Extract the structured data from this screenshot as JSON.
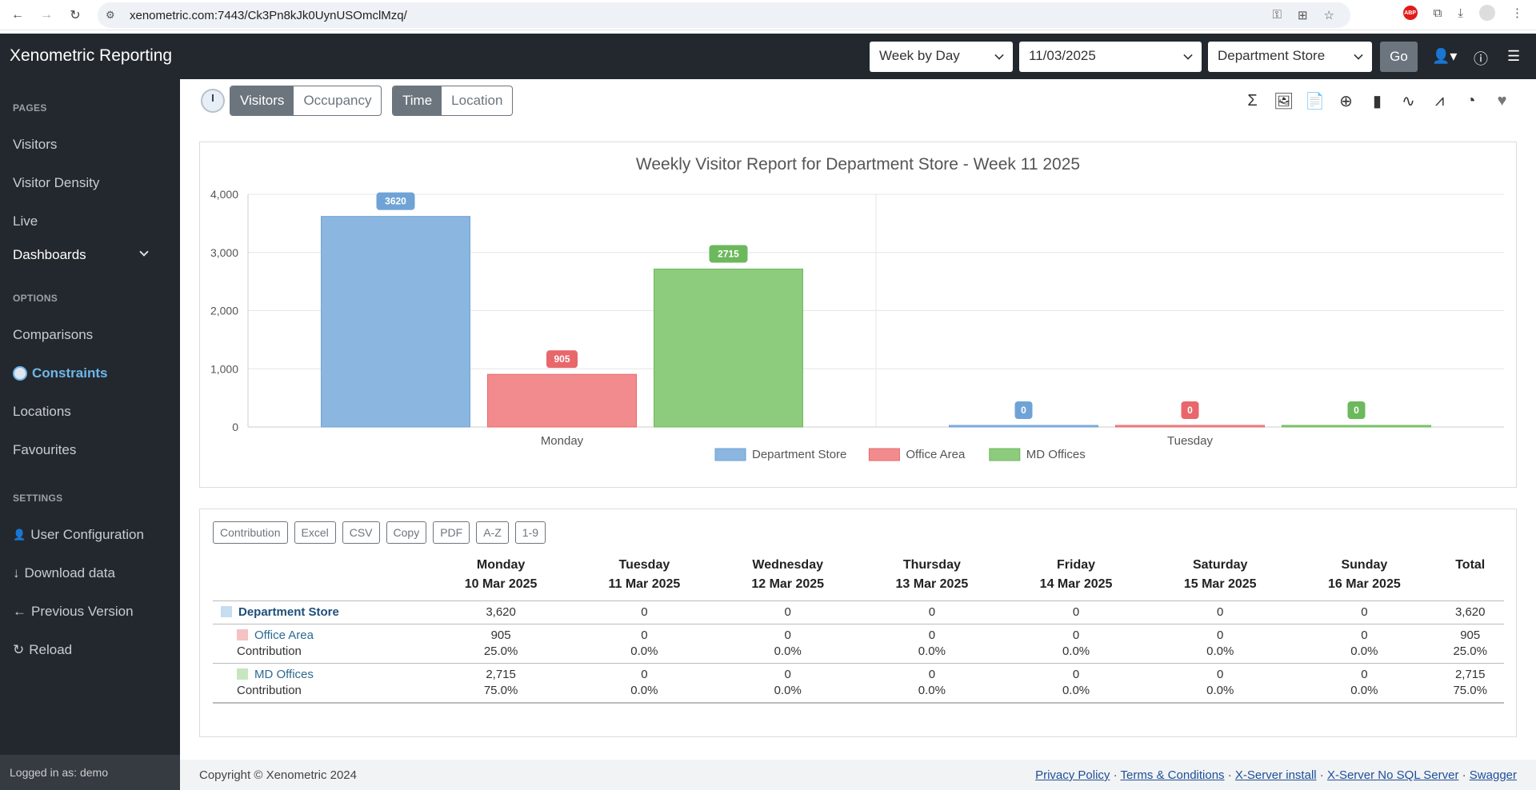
{
  "browser": {
    "url": "xenometric.com:7443/Ck3Pn8kJk0UynUSOmclMzq/"
  },
  "header": {
    "brand": "Xenometric Reporting",
    "period_select": "Week by Day",
    "date_select": "11/03/2025",
    "location_select": "Department Store",
    "go_label": "Go"
  },
  "sidebar": {
    "pages_heading": "PAGES",
    "visitors": "Visitors",
    "visitor_density": "Visitor Density",
    "live": "Live",
    "dashboards": "Dashboards",
    "options_heading": "OPTIONS",
    "comparisons": "Comparisons",
    "constraints": "Constraints",
    "locations": "Locations",
    "favourites": "Favourites",
    "settings_heading": "SETTINGS",
    "user_configuration": "User Configuration",
    "download_data": "Download data",
    "previous_version": "Previous Version",
    "reload": "Reload",
    "logged_in": "Logged in as: demo"
  },
  "toolbar": {
    "visitors": "Visitors",
    "occupancy": "Occupancy",
    "time": "Time",
    "location": "Location"
  },
  "chart_data": {
    "type": "bar",
    "title": "Weekly Visitor Report for Department Store - Week 11 2025",
    "categories": [
      "Monday",
      "Tuesday"
    ],
    "series": [
      {
        "name": "Department Store",
        "values": [
          3620,
          0
        ],
        "color": "#8ab6e0",
        "label_color": "#6fa3d6"
      },
      {
        "name": "Office Area",
        "values": [
          905,
          0
        ],
        "color": "#f28b8e",
        "label_color": "#e8676b"
      },
      {
        "name": "MD Offices",
        "values": [
          2715,
          0
        ],
        "color": "#8ccc7c",
        "label_color": "#6cb85c"
      }
    ],
    "ylim": [
      0,
      4000
    ],
    "yticks": [
      "0",
      "1,000",
      "2,000",
      "3,000",
      "4,000"
    ],
    "legend": "bottom-center"
  },
  "table": {
    "buttons": [
      "Contribution",
      "Excel",
      "CSV",
      "Copy",
      "PDF",
      "A-Z",
      "1-9"
    ],
    "columns": [
      {
        "day": "Monday",
        "date": "10 Mar 2025"
      },
      {
        "day": "Tuesday",
        "date": "11 Mar 2025"
      },
      {
        "day": "Wednesday",
        "date": "12 Mar 2025"
      },
      {
        "day": "Thursday",
        "date": "13 Mar 2025"
      },
      {
        "day": "Friday",
        "date": "14 Mar 2025"
      },
      {
        "day": "Saturday",
        "date": "15 Mar 2025"
      },
      {
        "day": "Sunday",
        "date": "16 Mar 2025"
      }
    ],
    "total_label": "Total",
    "contribution_label": "Contribution",
    "rows": [
      {
        "name": "Department Store",
        "values": [
          "3,620",
          "0",
          "0",
          "0",
          "0",
          "0",
          "0"
        ],
        "total": "3,620",
        "color": "#c6dcf0"
      },
      {
        "name": "Office Area",
        "values": [
          "905",
          "0",
          "0",
          "0",
          "0",
          "0",
          "0"
        ],
        "total": "905",
        "pct": [
          "25.0%",
          "0.0%",
          "0.0%",
          "0.0%",
          "0.0%",
          "0.0%",
          "0.0%"
        ],
        "total_pct": "25.0%",
        "color": "#f4c2c3"
      },
      {
        "name": "MD Offices",
        "values": [
          "2,715",
          "0",
          "0",
          "0",
          "0",
          "0",
          "0"
        ],
        "total": "2,715",
        "pct": [
          "75.0%",
          "0.0%",
          "0.0%",
          "0.0%",
          "0.0%",
          "0.0%",
          "0.0%"
        ],
        "total_pct": "75.0%",
        "color": "#c7e6bf"
      }
    ]
  },
  "footer": {
    "copyright": "Copyright © Xenometric 2024",
    "privacy": "Privacy Policy",
    "terms": "Terms & Conditions",
    "xserver": "X-Server install",
    "xserver_nosql": "X-Server No SQL Server",
    "swagger": "Swagger",
    "separator": " · "
  }
}
